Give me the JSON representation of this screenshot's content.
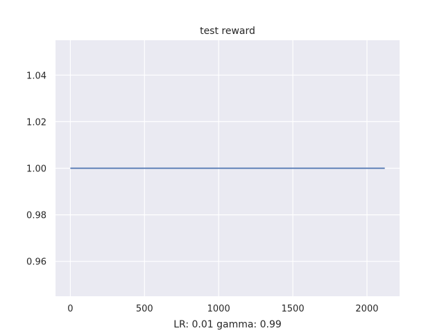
{
  "chart_data": {
    "type": "line",
    "title": "test reward",
    "xlabel": "LR: 0.01 gamma: 0.99",
    "ylabel": "",
    "xlim": [
      -100,
      2220
    ],
    "ylim": [
      0.945,
      1.055
    ],
    "xticks": [
      0,
      500,
      1000,
      1500,
      2000
    ],
    "xtick_labels": [
      "0",
      "500",
      "1000",
      "1500",
      "2000"
    ],
    "yticks": [
      0.96,
      0.98,
      1.0,
      1.02,
      1.04
    ],
    "ytick_labels": [
      "0.96",
      "0.98",
      "1.00",
      "1.02",
      "1.04"
    ],
    "grid": true,
    "series": [
      {
        "x": [
          0,
          2120
        ],
        "y": [
          1.0,
          1.0
        ],
        "color": "#4c72b0"
      }
    ],
    "colors": {
      "background": "#eaeaf2",
      "grid": "#ffffff",
      "line": "#4c72b0"
    }
  }
}
